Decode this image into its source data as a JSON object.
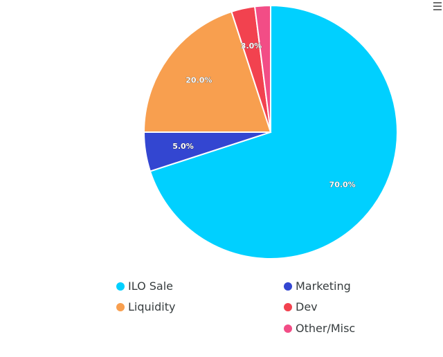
{
  "chart_data": {
    "type": "pie",
    "title": "",
    "categories": [
      "ILO Sale",
      "Marketing",
      "Liquidity",
      "Dev",
      "Other/Misc"
    ],
    "values": [
      70,
      5,
      20,
      3,
      2
    ],
    "data_labels": [
      "70.0%",
      "5.0%",
      "20.0%",
      "3.0%",
      ""
    ],
    "colors": [
      "#00d0ff",
      "#3346d1",
      "#f89f4f",
      "#f2424f",
      "#f24d86"
    ],
    "legend_position": "bottom"
  },
  "toolbar": {
    "menu_icon": "hamburger-menu-icon"
  }
}
